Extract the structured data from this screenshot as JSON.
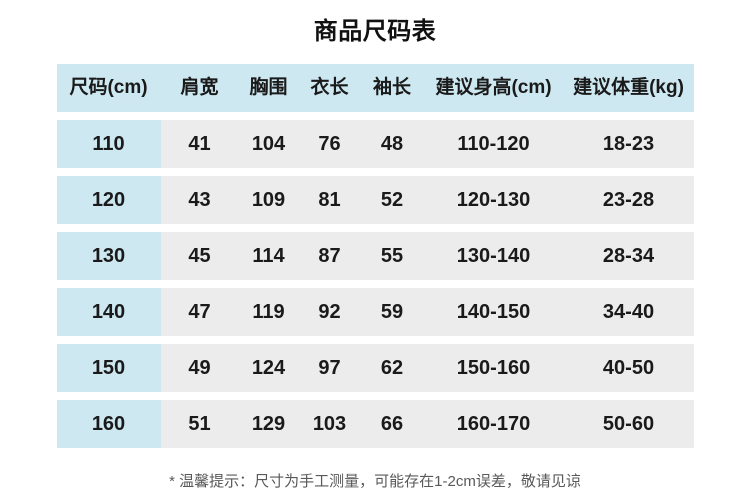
{
  "page": {
    "title": "商品尺码表",
    "note": "* 温馨提示：尺寸为手工测量，可能存在1-2cm误差，敬请见谅"
  },
  "colors": {
    "header_bg": "#cde8f1",
    "size_column_bg": "#cde8f1",
    "data_cell_bg": "#ececec",
    "text": "#1a1a1a",
    "note_text": "#595959",
    "page_bg": "#ffffff"
  },
  "table": {
    "headers": [
      "尺码(cm)",
      "肩宽",
      "胸围",
      "衣长",
      "袖长",
      "建议身高(cm)",
      "建议体重(kg)"
    ],
    "rows": [
      [
        "110",
        "41",
        "104",
        "76",
        "48",
        "110-120",
        "18-23"
      ],
      [
        "120",
        "43",
        "109",
        "81",
        "52",
        "120-130",
        "23-28"
      ],
      [
        "130",
        "45",
        "114",
        "87",
        "55",
        "130-140",
        "28-34"
      ],
      [
        "140",
        "47",
        "119",
        "92",
        "59",
        "140-150",
        "34-40"
      ],
      [
        "150",
        "49",
        "124",
        "97",
        "62",
        "150-160",
        "40-50"
      ],
      [
        "160",
        "51",
        "129",
        "103",
        "66",
        "160-170",
        "50-60"
      ]
    ]
  }
}
